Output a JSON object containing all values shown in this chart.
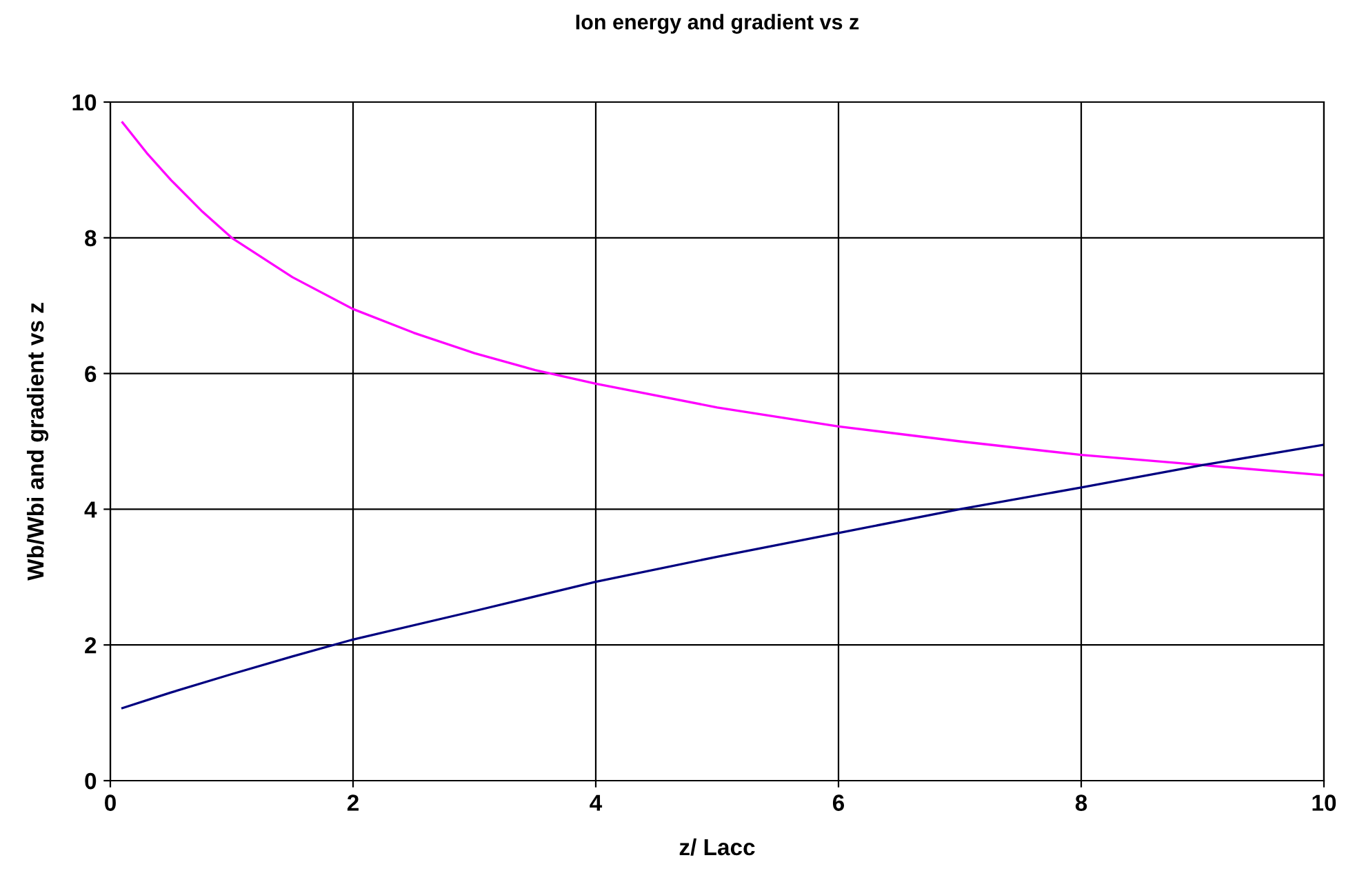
{
  "chart_data": {
    "type": "line",
    "title": "Ion energy and gradient vs z",
    "xlabel": "z/ Lacc",
    "ylabel": "Wb/Wbi and gradient vs z",
    "xlim": [
      0,
      10
    ],
    "ylim": [
      0,
      10
    ],
    "xticks": [
      0,
      2,
      4,
      6,
      8,
      10
    ],
    "yticks": [
      0,
      2,
      4,
      6,
      8,
      10
    ],
    "grid": true,
    "marker": "none",
    "line_style": "solid",
    "series": [
      {
        "color": "#ff00ff",
        "x": [
          0.1,
          0.3,
          0.5,
          0.75,
          1,
          1.5,
          2,
          2.5,
          3,
          3.5,
          4,
          5,
          6,
          7,
          8,
          9,
          10
        ],
        "values": [
          9.7,
          9.25,
          8.85,
          8.4,
          8.0,
          7.42,
          6.95,
          6.6,
          6.3,
          6.05,
          5.85,
          5.5,
          5.22,
          5.0,
          4.8,
          4.65,
          4.5
        ]
      },
      {
        "color": "#000080",
        "x": [
          0.1,
          0.5,
          1,
          1.5,
          2,
          3,
          4,
          5,
          6,
          7,
          8,
          9,
          10
        ],
        "values": [
          1.07,
          1.3,
          1.57,
          1.83,
          2.08,
          2.5,
          2.93,
          3.3,
          3.65,
          4.0,
          4.32,
          4.65,
          4.95
        ]
      }
    ]
  }
}
